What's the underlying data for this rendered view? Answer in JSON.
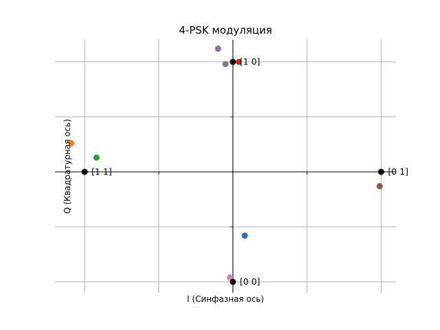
{
  "chart_data": {
    "type": "scatter",
    "title": "4-PSK модуляция",
    "xlabel": "I (Синфазная ось)",
    "ylabel": "Q (Квадратурная ось)",
    "xlim": [
      -1.2,
      1.1
    ],
    "ylim": [
      -1.1,
      1.2
    ],
    "grid": true,
    "ticks": [
      -1.0,
      -0.5,
      0.0,
      0.5,
      1.0
    ],
    "constellation": [
      {
        "x": 1.0,
        "y": 0.0,
        "label": "[0 1]"
      },
      {
        "x": 0.0,
        "y": 1.0,
        "label": "[1 0]"
      },
      {
        "x": -1.0,
        "y": 0.0,
        "label": "[1 1]"
      },
      {
        "x": 0.0,
        "y": -1.0,
        "label": "[0 0]"
      }
    ],
    "constellation_color": "#000000",
    "received": [
      {
        "x": 0.08,
        "y": -0.58,
        "color": "#1f77b4"
      },
      {
        "x": -1.09,
        "y": 0.26,
        "color": "#ff7f0e"
      },
      {
        "x": -0.92,
        "y": 0.13,
        "color": "#2ca02c"
      },
      {
        "x": 0.04,
        "y": 1.0,
        "color": "#d62728"
      },
      {
        "x": -0.1,
        "y": 1.12,
        "color": "#9467bd"
      },
      {
        "x": 0.99,
        "y": -0.13,
        "color": "#8c564b"
      },
      {
        "x": -0.02,
        "y": -0.96,
        "color": "#e377c2"
      },
      {
        "x": -0.05,
        "y": 0.98,
        "color": "#7f7f7f"
      }
    ]
  }
}
